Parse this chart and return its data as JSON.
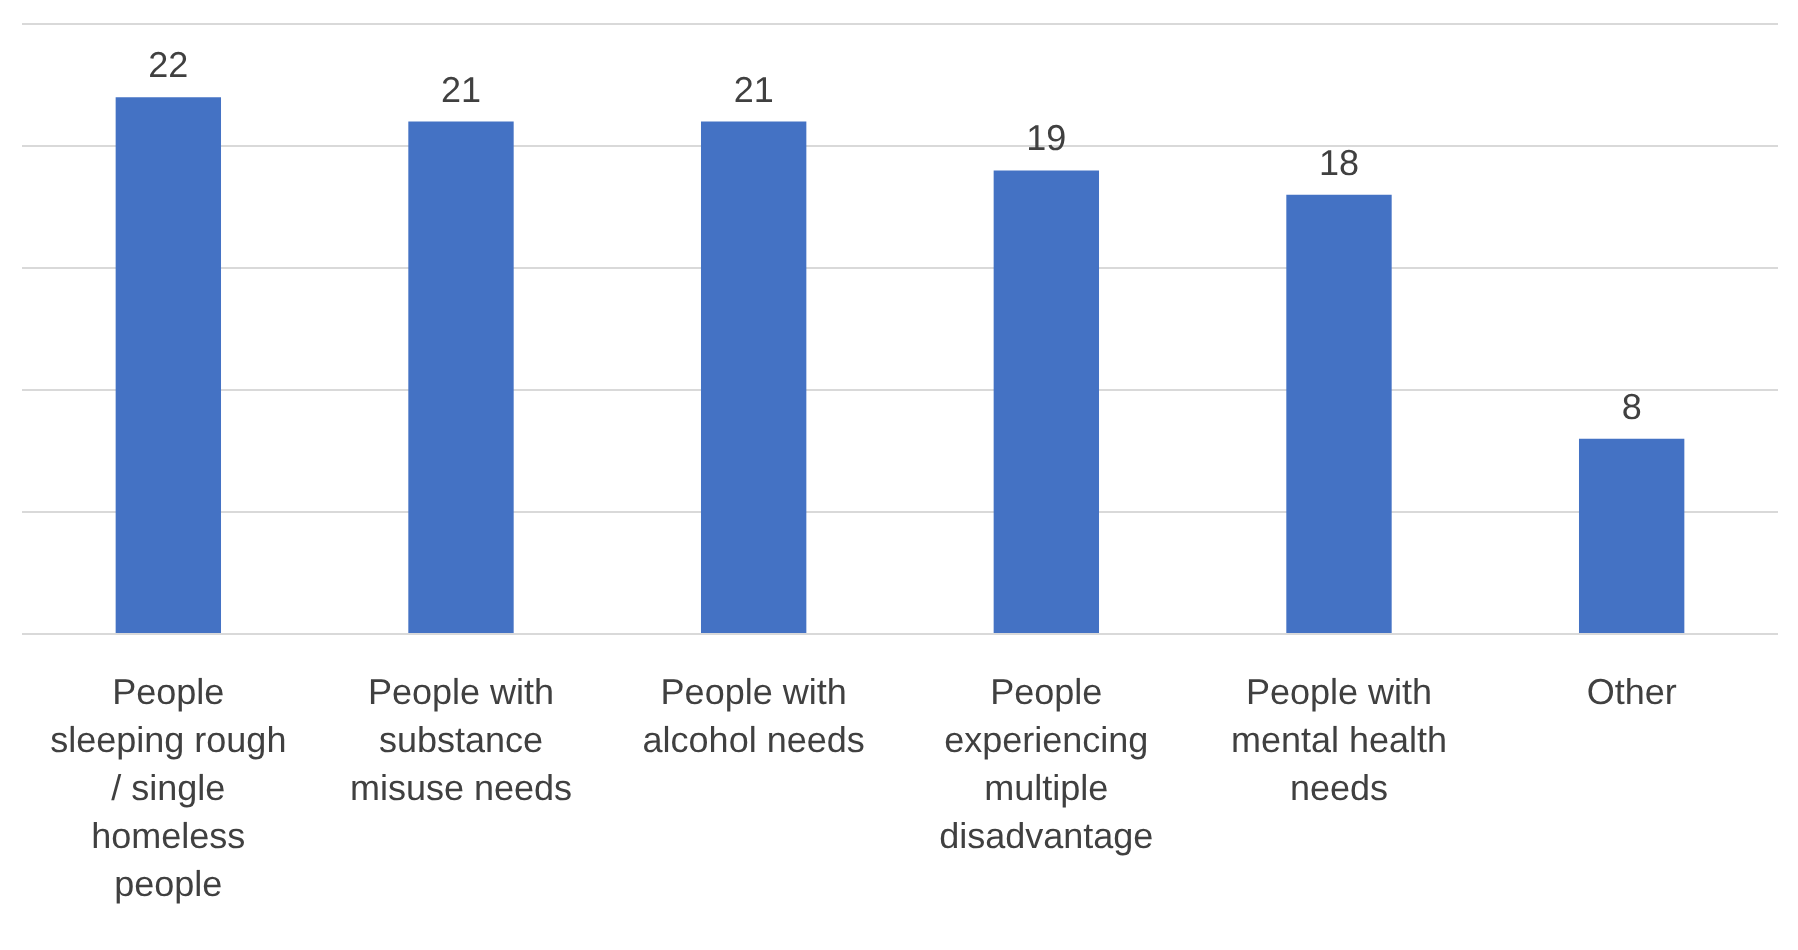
{
  "chart_data": {
    "type": "bar",
    "categories": [
      "People sleeping rough / single homeless people",
      "People with substance misuse needs",
      "People with alcohol needs",
      "People experiencing multiple disadvantage",
      "People with mental health needs",
      "Other"
    ],
    "values": [
      22,
      21,
      21,
      19,
      18,
      8
    ],
    "color": "#4472c4",
    "tick_labels": "x",
    "grid": "y",
    "data_labels": true
  }
}
